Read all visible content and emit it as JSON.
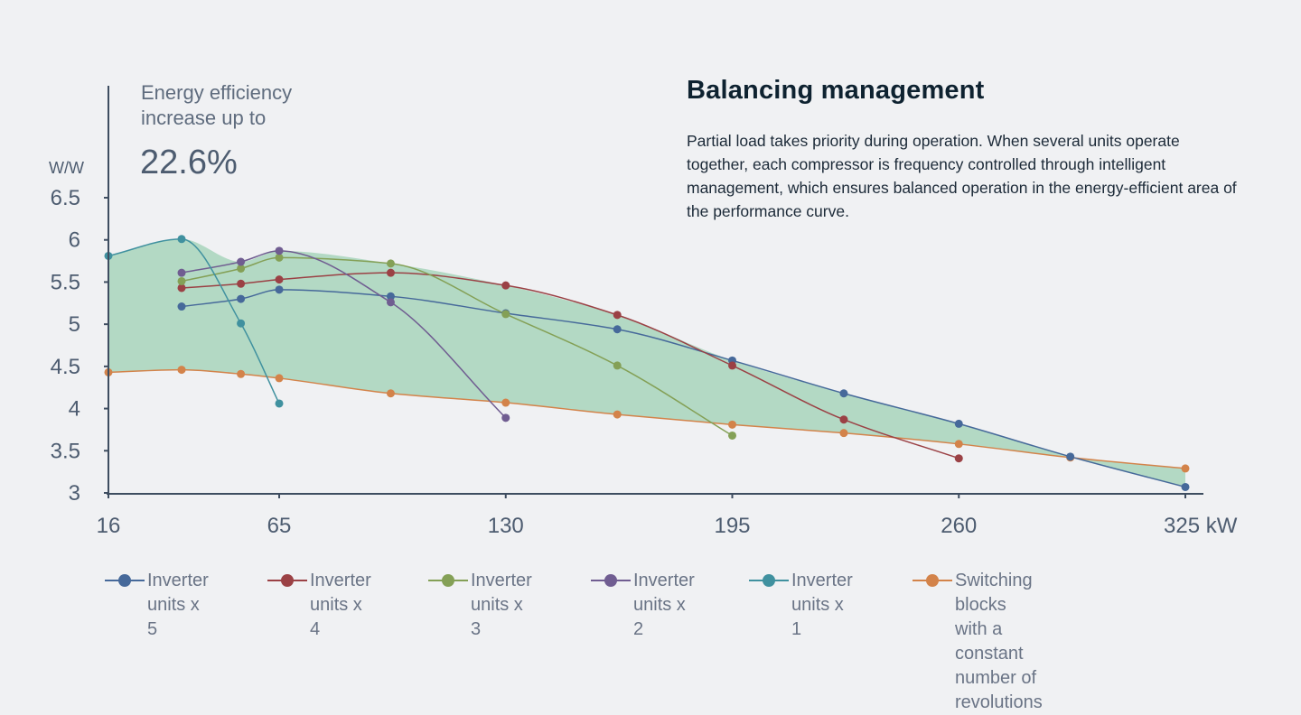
{
  "colors": {
    "background": "#f0f1f3",
    "axis": "#3e4d60",
    "band_fill": "#b3d9c4",
    "band_stroke": "#2e8b57"
  },
  "callout": {
    "line1": "Energy efficiency",
    "line2": "increase up to",
    "value": "22.6%"
  },
  "info": {
    "title": "Balancing management",
    "body": "Partial load takes priority during operation. When several units operate together, each compressor is frequency controlled through intelligent management, which ensures balanced operation in the energy-efficient area of the performance curve."
  },
  "chart_data": {
    "type": "line",
    "title": "",
    "xlabel": "kW",
    "ylabel": "W/W",
    "xlim": [
      16,
      325
    ],
    "ylim": [
      3,
      6.5
    ],
    "x_ticks": [
      16,
      65,
      130,
      195,
      260,
      325
    ],
    "x_tick_labels": [
      "16",
      "65",
      "130",
      "195",
      "260",
      "325 kW"
    ],
    "y_ticks": [
      3,
      3.5,
      4,
      4.5,
      5,
      5.5,
      6,
      6.5
    ],
    "y_tick_labels": [
      "3",
      "3.5",
      "4",
      "4.5",
      "5",
      "5.5",
      "6",
      "6.5"
    ],
    "y_unit": "W/W",
    "grid": false,
    "legend_position": "bottom",
    "shaded_area": "between the upper envelope of the inverter curves and the switching-blocks curve",
    "series": [
      {
        "name": "Inverter units x 5",
        "color": "#46699a",
        "x": [
          37,
          54,
          65,
          97,
          130,
          162,
          195,
          227,
          260,
          292,
          325
        ],
        "y": [
          5.21,
          5.3,
          5.41,
          5.33,
          5.13,
          4.94,
          4.57,
          4.18,
          3.82,
          3.43,
          3.07
        ]
      },
      {
        "name": "Inverter units x 4",
        "color": "#9b4145",
        "x": [
          37,
          54,
          65,
          97,
          130,
          162,
          195,
          227,
          260
        ],
        "y": [
          5.43,
          5.48,
          5.53,
          5.61,
          5.46,
          5.11,
          4.51,
          3.87,
          3.41
        ]
      },
      {
        "name": "Inverter units x 3",
        "color": "#84a056",
        "x": [
          37,
          54,
          65,
          97,
          130,
          162,
          195
        ],
        "y": [
          5.51,
          5.66,
          5.79,
          5.72,
          5.12,
          4.51,
          3.68
        ]
      },
      {
        "name": "Inverter units x 2",
        "color": "#705d91",
        "x": [
          37,
          54,
          65,
          97,
          130
        ],
        "y": [
          5.61,
          5.74,
          5.87,
          5.26,
          3.89
        ]
      },
      {
        "name": "Inverter units x 1",
        "color": "#40919f",
        "x": [
          16,
          37,
          54,
          65
        ],
        "y": [
          5.81,
          6.01,
          5.01,
          4.06
        ]
      },
      {
        "name": "Switching blocks with a constant number of revolutions",
        "color": "#d3834a",
        "x": [
          16,
          37,
          54,
          65,
          97,
          130,
          162,
          195,
          227,
          260,
          292,
          325
        ],
        "y": [
          4.43,
          4.46,
          4.41,
          4.36,
          4.18,
          4.07,
          3.93,
          3.81,
          3.71,
          3.58,
          3.42,
          3.29
        ]
      }
    ]
  },
  "legend": {
    "items": [
      {
        "label": "Inverter\nunits x 5",
        "color": "#46699a"
      },
      {
        "label": "Inverter\nunits x 4",
        "color": "#9b4145"
      },
      {
        "label": "Inverter\nunits x 3",
        "color": "#84a056"
      },
      {
        "label": "Inverter\nunits x 2",
        "color": "#705d91"
      },
      {
        "label": "Inverter\nunits x 1",
        "color": "#40919f"
      },
      {
        "label": "Switching blocks with a constant\nnumber of revolutions",
        "color": "#d3834a"
      }
    ]
  }
}
